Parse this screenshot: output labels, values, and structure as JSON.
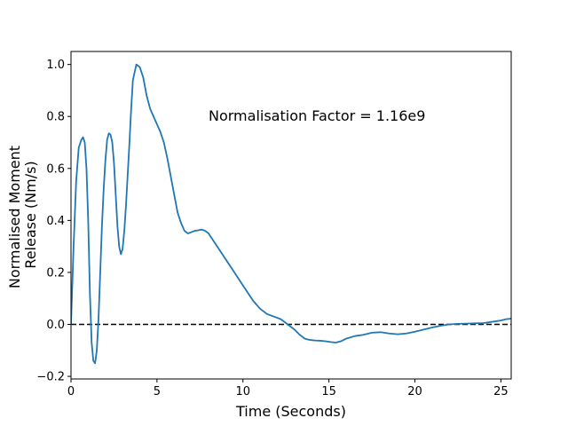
{
  "chart_data": {
    "type": "line",
    "xlabel": "Time (Seconds)",
    "ylabel_lines": [
      "Normalised Moment",
      "Release (Nm/s)"
    ],
    "xlim": [
      0,
      25.6
    ],
    "ylim": [
      -0.21,
      1.05
    ],
    "xticks": [
      0,
      5,
      10,
      15,
      20,
      25
    ],
    "yticks": [
      -0.2,
      0.0,
      0.2,
      0.4,
      0.6,
      0.8,
      1.0
    ],
    "xtick_labels": [
      "0",
      "5",
      "10",
      "15",
      "20",
      "25"
    ],
    "ytick_labels": [
      "−0.2",
      "0.0",
      "0.2",
      "0.4",
      "0.6",
      "0.8",
      "1.0"
    ],
    "grid": false,
    "reference_line": {
      "y": 0.0,
      "style": "dashed",
      "color": "#000000"
    },
    "annotation": {
      "text": "Normalisation Factor = 1.16e9",
      "x": 8.0,
      "y": 0.8
    },
    "series": [
      {
        "color": "#1f77b4",
        "x": [
          0.0,
          0.15,
          0.3,
          0.45,
          0.6,
          0.7,
          0.8,
          0.9,
          1.0,
          1.1,
          1.2,
          1.3,
          1.4,
          1.5,
          1.6,
          1.7,
          1.8,
          1.9,
          2.0,
          2.1,
          2.2,
          2.3,
          2.4,
          2.5,
          2.6,
          2.7,
          2.8,
          2.9,
          3.0,
          3.1,
          3.2,
          3.3,
          3.4,
          3.5,
          3.6,
          3.8,
          4.0,
          4.2,
          4.4,
          4.6,
          4.8,
          5.0,
          5.2,
          5.4,
          5.6,
          5.8,
          6.0,
          6.2,
          6.4,
          6.6,
          6.8,
          7.0,
          7.2,
          7.4,
          7.6,
          7.8,
          8.0,
          8.2,
          8.5,
          9.0,
          9.5,
          10.0,
          10.3,
          10.6,
          11.0,
          11.4,
          11.8,
          12.2,
          12.6,
          13.0,
          13.3,
          13.6,
          13.9,
          14.2,
          14.5,
          14.8,
          15.1,
          15.4,
          15.7,
          16.0,
          16.5,
          17.0,
          17.5,
          18.0,
          18.5,
          19.0,
          19.5,
          20.0,
          20.5,
          21.0,
          21.5,
          22.0,
          22.5,
          23.0,
          23.5,
          24.0,
          24.5,
          25.0,
          25.3,
          25.6
        ],
        "y": [
          0.0,
          0.3,
          0.55,
          0.68,
          0.71,
          0.72,
          0.7,
          0.6,
          0.4,
          0.12,
          -0.07,
          -0.14,
          -0.15,
          -0.1,
          0.02,
          0.2,
          0.38,
          0.52,
          0.63,
          0.71,
          0.735,
          0.73,
          0.7,
          0.62,
          0.5,
          0.38,
          0.3,
          0.27,
          0.29,
          0.36,
          0.46,
          0.58,
          0.7,
          0.83,
          0.94,
          1.0,
          0.99,
          0.95,
          0.88,
          0.83,
          0.8,
          0.77,
          0.74,
          0.7,
          0.64,
          0.57,
          0.5,
          0.43,
          0.39,
          0.36,
          0.35,
          0.355,
          0.36,
          0.362,
          0.365,
          0.36,
          0.35,
          0.33,
          0.3,
          0.25,
          0.2,
          0.15,
          0.12,
          0.09,
          0.06,
          0.04,
          0.03,
          0.02,
          0.0,
          -0.02,
          -0.04,
          -0.055,
          -0.06,
          -0.062,
          -0.063,
          -0.065,
          -0.068,
          -0.07,
          -0.065,
          -0.055,
          -0.045,
          -0.04,
          -0.032,
          -0.03,
          -0.035,
          -0.038,
          -0.035,
          -0.028,
          -0.02,
          -0.012,
          -0.005,
          0.0,
          0.002,
          0.003,
          0.004,
          0.005,
          0.01,
          0.015,
          0.02,
          0.022
        ]
      }
    ]
  }
}
